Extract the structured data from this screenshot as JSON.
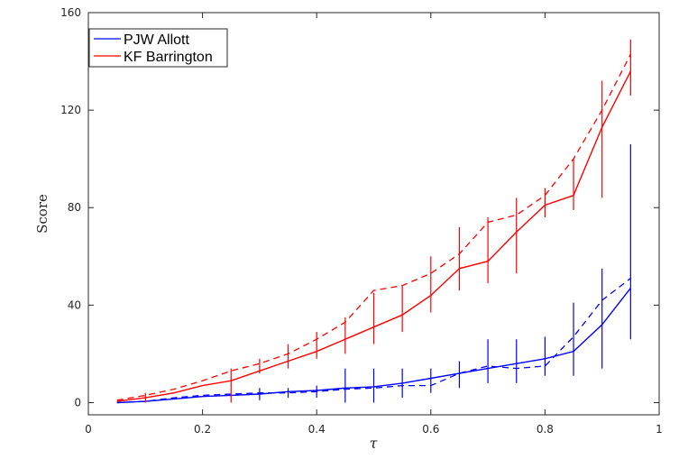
{
  "chart_data": {
    "type": "line",
    "title": "",
    "xlabel": "τ",
    "ylabel": "Score",
    "xlim": [
      0,
      1
    ],
    "ylim": [
      -5,
      160
    ],
    "xticks": [
      0,
      0.2,
      0.4,
      0.6,
      0.8,
      1
    ],
    "xtick_labels": [
      "0",
      "0.2",
      "0.4",
      "0.6",
      "0.8",
      "1"
    ],
    "yticks": [
      0,
      40,
      80,
      120,
      160
    ],
    "ytick_labels": [
      "0",
      "40",
      "80",
      "120",
      "160"
    ],
    "grid": false,
    "legend_position": "top-left",
    "x": [
      0.05,
      0.1,
      0.15,
      0.2,
      0.25,
      0.3,
      0.35,
      0.4,
      0.45,
      0.5,
      0.55,
      0.6,
      0.65,
      0.7,
      0.75,
      0.8,
      0.85,
      0.9,
      0.95
    ],
    "series": [
      {
        "name": "PJW Allott",
        "color": "#0000ff",
        "solid": [
          0,
          0.5,
          1.5,
          2.5,
          3,
          3.5,
          4.5,
          5,
          6,
          6.5,
          8,
          10,
          12,
          14,
          16,
          18,
          21,
          32,
          47
        ],
        "dashed": [
          0,
          0.5,
          2,
          3,
          3.5,
          4,
          4,
          4.5,
          5.5,
          6,
          7,
          7,
          12,
          15,
          14,
          15,
          27,
          42,
          51
        ],
        "error_low": [
          0,
          0,
          0,
          0,
          0,
          1,
          2,
          2,
          0,
          0,
          2,
          4,
          6,
          8,
          8,
          11,
          11,
          14,
          26
        ],
        "error_high": [
          0,
          0,
          0,
          0,
          0,
          6,
          6,
          7,
          14,
          14,
          14,
          14,
          17,
          26,
          26,
          27,
          41,
          55,
          106
        ]
      },
      {
        "name": "KF Barrington",
        "color": "#ff0000",
        "solid": [
          0.5,
          2,
          4,
          7,
          9,
          13,
          17,
          21,
          26,
          31,
          36,
          44,
          55,
          58,
          70,
          81,
          85,
          113,
          136
        ],
        "dashed": [
          1,
          3,
          5.5,
          9,
          13,
          16,
          20,
          26,
          33,
          46,
          48,
          53,
          61,
          74,
          77,
          85,
          100,
          120,
          143
        ],
        "error_low": [
          0,
          0,
          0,
          0,
          0,
          12,
          14,
          18,
          20,
          24,
          29,
          37,
          46,
          49,
          53,
          76,
          79,
          84,
          126
        ],
        "error_high": [
          0,
          4,
          0,
          0,
          14,
          18,
          24,
          29,
          35,
          45,
          48,
          60,
          72,
          76,
          84,
          88,
          100,
          132,
          149
        ]
      }
    ]
  }
}
